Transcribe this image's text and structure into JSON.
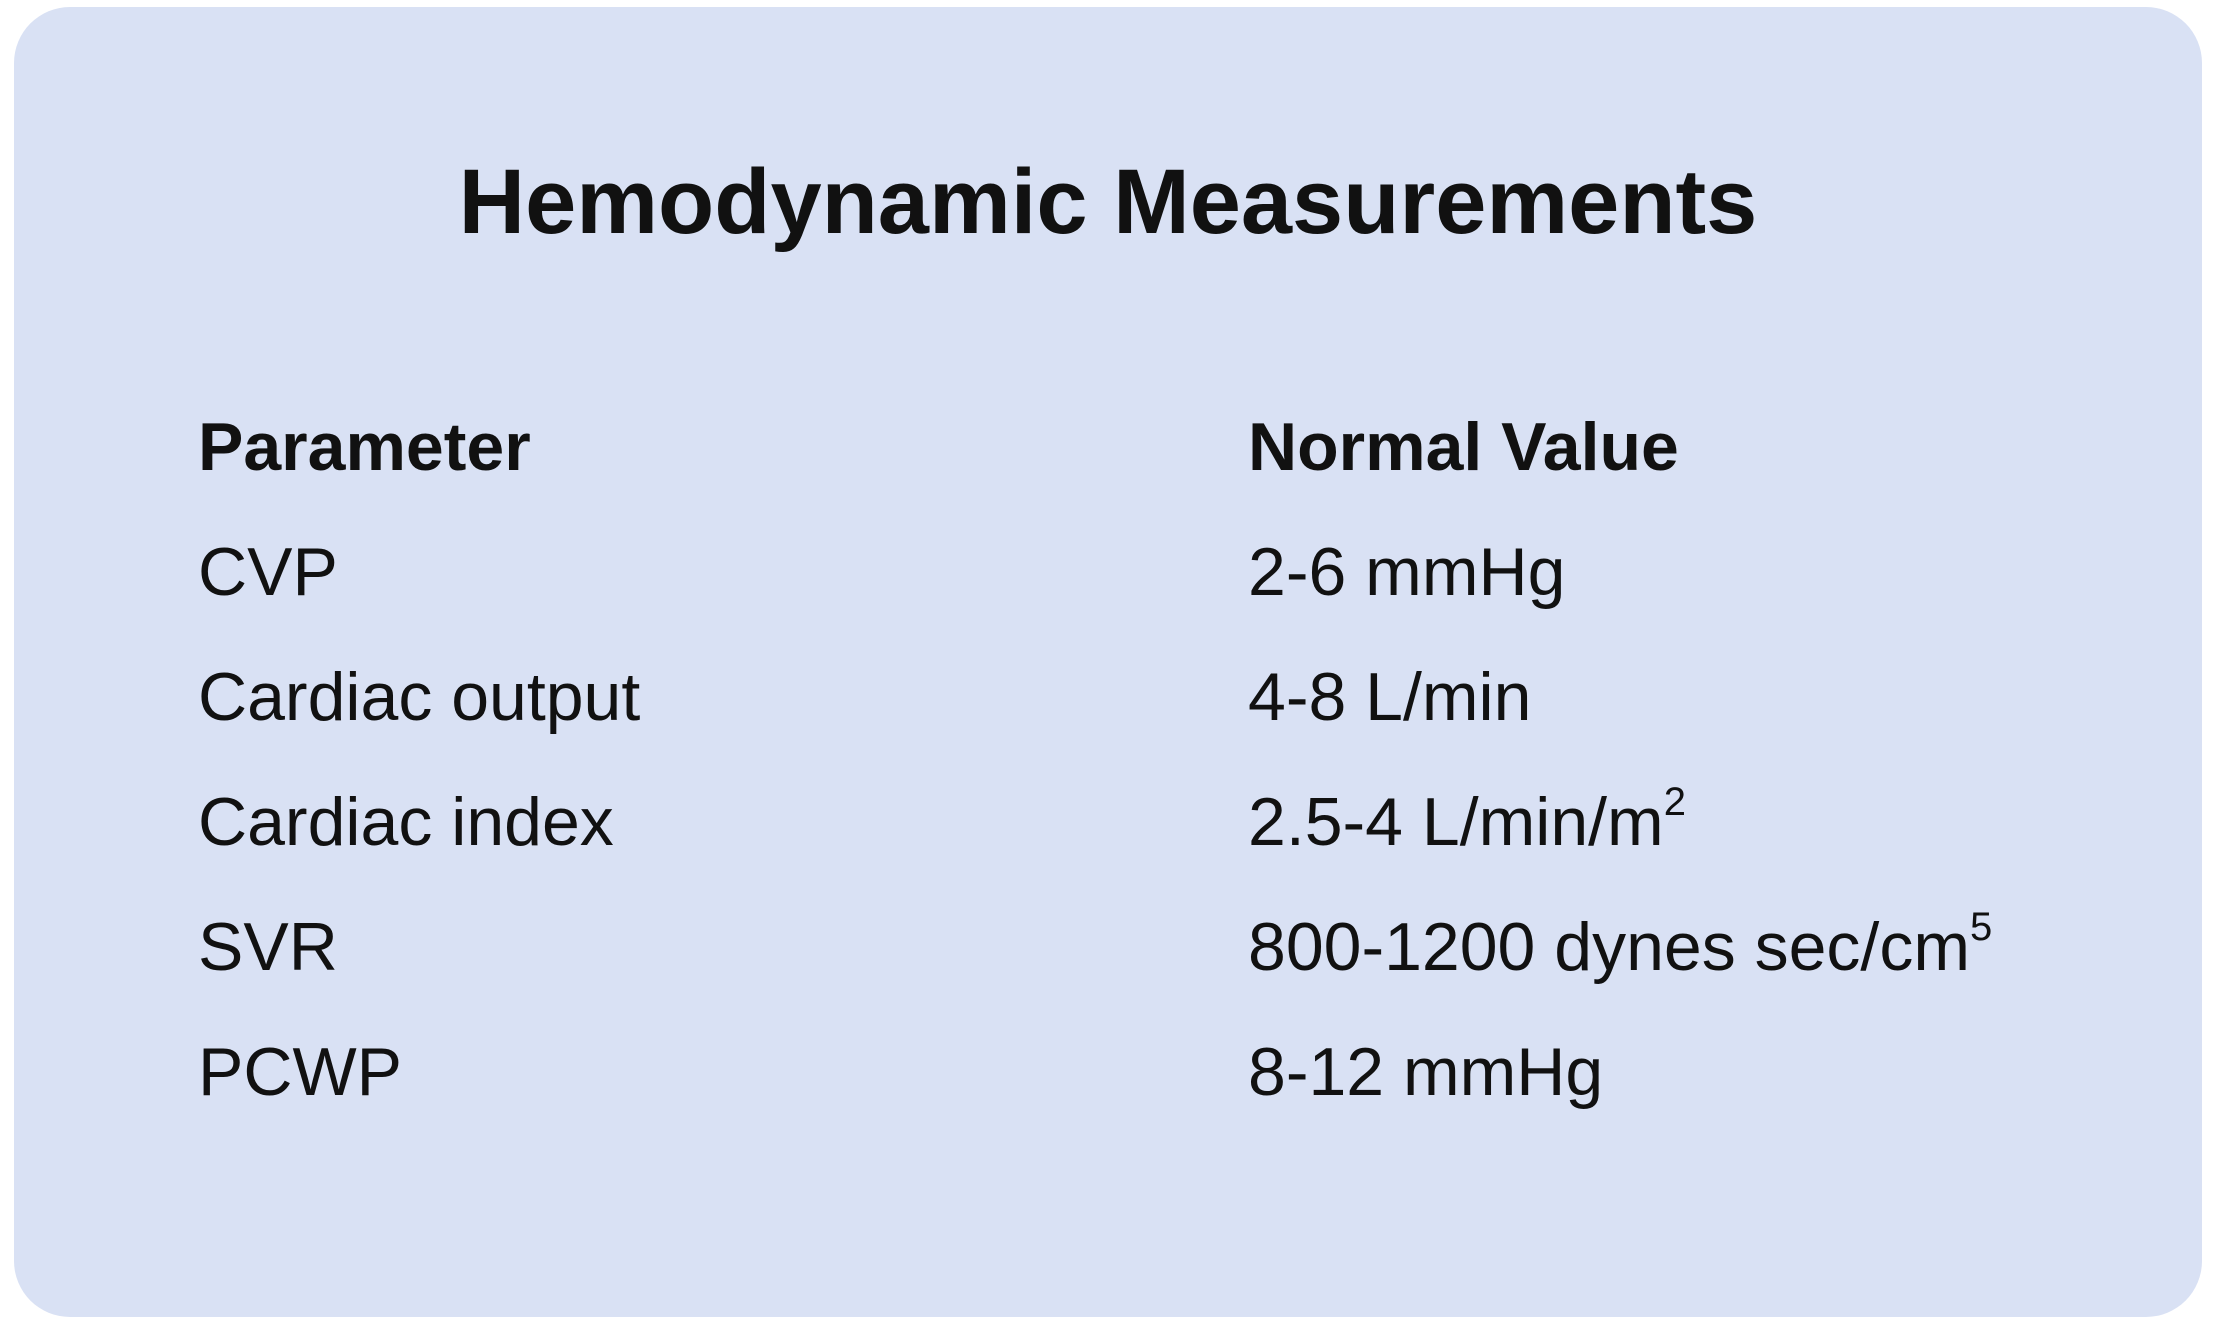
{
  "title": "Hemodynamic Measurements",
  "table": {
    "header": [
      "Parameter",
      "Normal Value"
    ],
    "rows": [
      [
        "CVP",
        "2-6 mmHg"
      ],
      [
        "Cardiac output",
        "4-8 L/min"
      ],
      [
        "Cardiac index",
        {
          "text": "2.5-4 L/min/m",
          "sup": "2"
        }
      ],
      [
        "SVR",
        {
          "text": "800-1200 dynes sec/cm",
          "sup": "5"
        }
      ],
      [
        "PCWP",
        "8-12 mmHg"
      ]
    ]
  }
}
